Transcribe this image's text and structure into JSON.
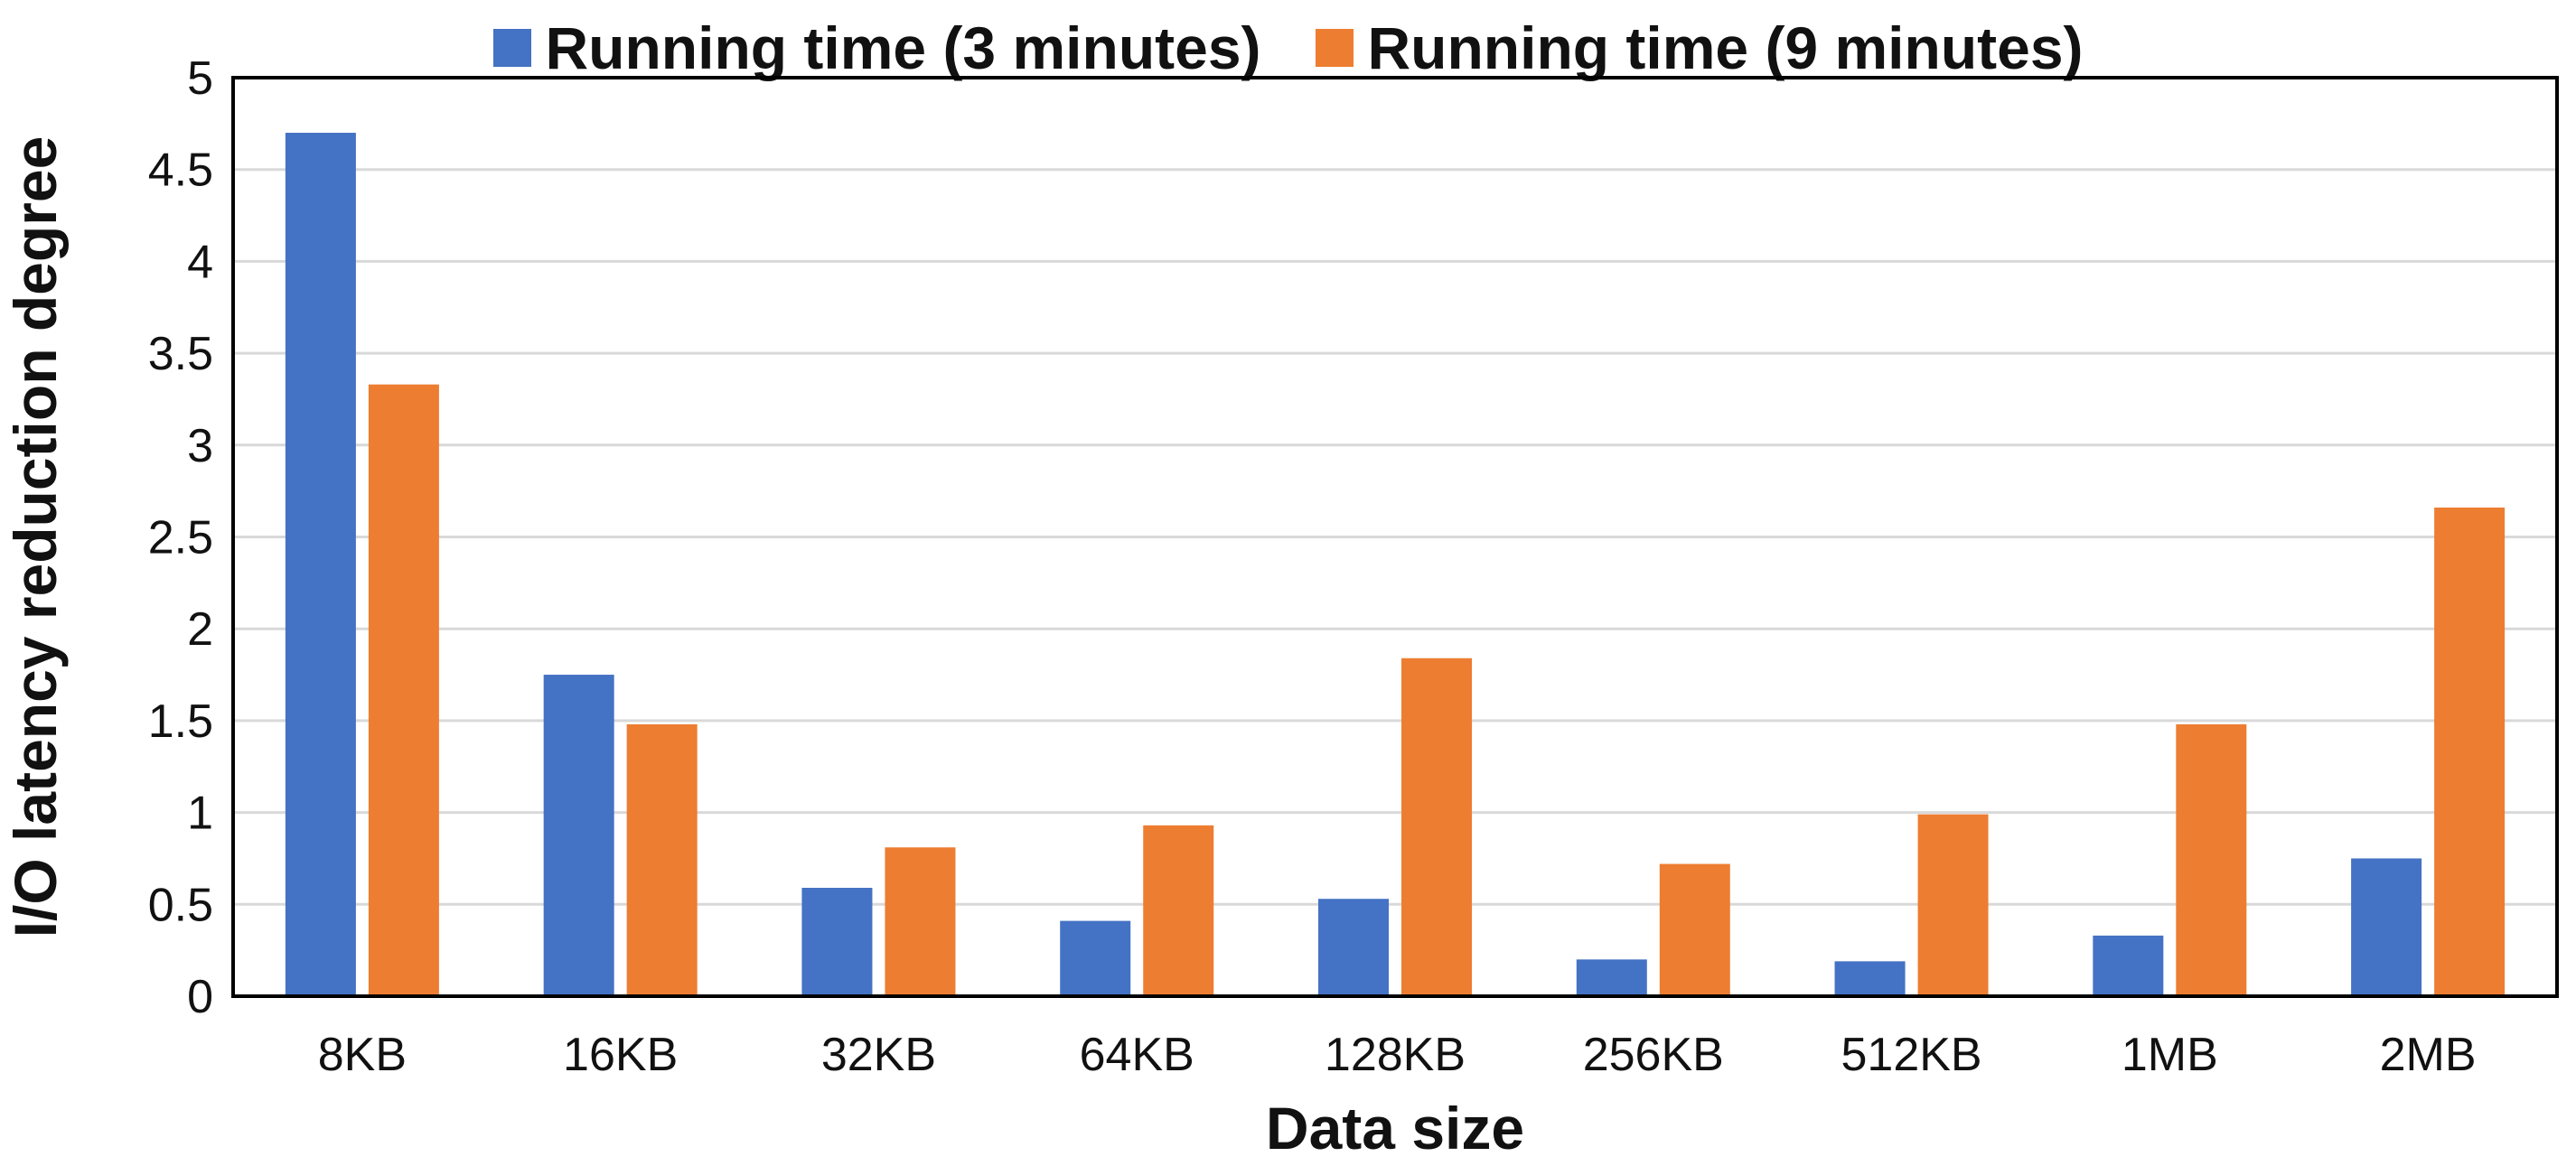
{
  "chart_data": {
    "type": "bar",
    "title": "",
    "xlabel": "Data size",
    "ylabel": "I/O latency reduction degree",
    "categories": [
      "8KB",
      "16KB",
      "32KB",
      "64KB",
      "128KB",
      "256KB",
      "512KB",
      "1MB",
      "2MB"
    ],
    "series": [
      {
        "name": "Running time (3 minutes)",
        "color": "#4472C4",
        "values": [
          4.7,
          1.75,
          0.59,
          0.41,
          0.53,
          0.2,
          0.19,
          0.33,
          0.75
        ]
      },
      {
        "name": "Running time (9 minutes)",
        "color": "#ED7D31",
        "values": [
          3.33,
          1.48,
          0.81,
          0.93,
          1.84,
          0.72,
          0.99,
          1.48,
          2.66
        ]
      }
    ],
    "ylim": [
      0,
      5
    ],
    "yticks": [
      "0",
      "0.5",
      "1",
      "1.5",
      "2",
      "2.5",
      "3",
      "3.5",
      "4",
      "4.5",
      "5"
    ],
    "grid": true,
    "legend_position": "top-center"
  }
}
